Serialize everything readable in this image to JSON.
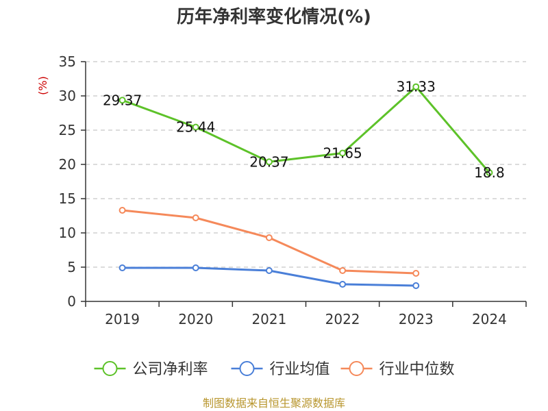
{
  "chart_data": {
    "type": "line",
    "title": "历年净利率变化情况(%)",
    "ylabel": "(%)",
    "xlabel": "",
    "categories": [
      "2019",
      "2020",
      "2021",
      "2022",
      "2023",
      "2024"
    ],
    "ylim": [
      0,
      35
    ],
    "yticks": [
      0,
      5,
      10,
      15,
      20,
      25,
      30,
      35
    ],
    "grid": true,
    "legend_position": "bottom",
    "series": [
      {
        "name": "公司净利率",
        "color": "#5dc229",
        "values": [
          29.37,
          25.44,
          20.37,
          21.65,
          31.33,
          18.8
        ],
        "labels": [
          "29.37",
          "25.44",
          "20.37",
          "21.65",
          "31.33",
          "18.8"
        ]
      },
      {
        "name": "行业均值",
        "color": "#4a7fd8",
        "values": [
          4.9,
          4.9,
          4.5,
          2.5,
          2.3,
          null
        ]
      },
      {
        "name": "行业中位数",
        "color": "#f5895a",
        "values": [
          13.3,
          12.2,
          9.3,
          4.5,
          4.1,
          null
        ]
      }
    ],
    "source": "制图数据来自恒生聚源数据库"
  }
}
